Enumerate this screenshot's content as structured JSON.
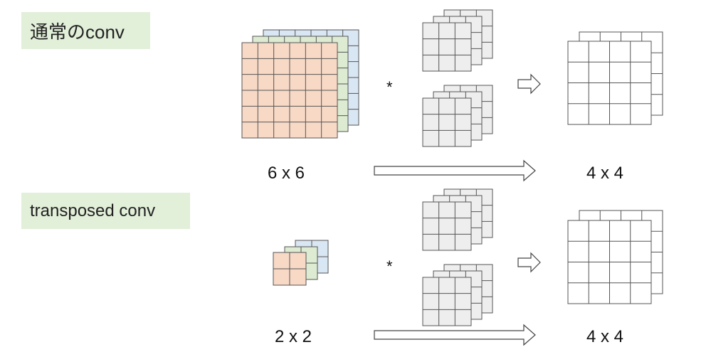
{
  "labels": {
    "normal_conv": "通常のconv",
    "transposed_conv": "transposed conv"
  },
  "dims": {
    "normal_in": "6 x 6",
    "normal_out": "4 x 4",
    "transposed_in": "2 x 2",
    "transposed_out": "4 x 4"
  },
  "operator": "*",
  "colors": {
    "channel_front": "#f8d9c6",
    "channel_middle": "#dcebd1",
    "channel_back": "#d9e6f3",
    "kernel": "#eeeeee",
    "output": "#ffffff",
    "label_bg": "#e2efd9"
  }
}
